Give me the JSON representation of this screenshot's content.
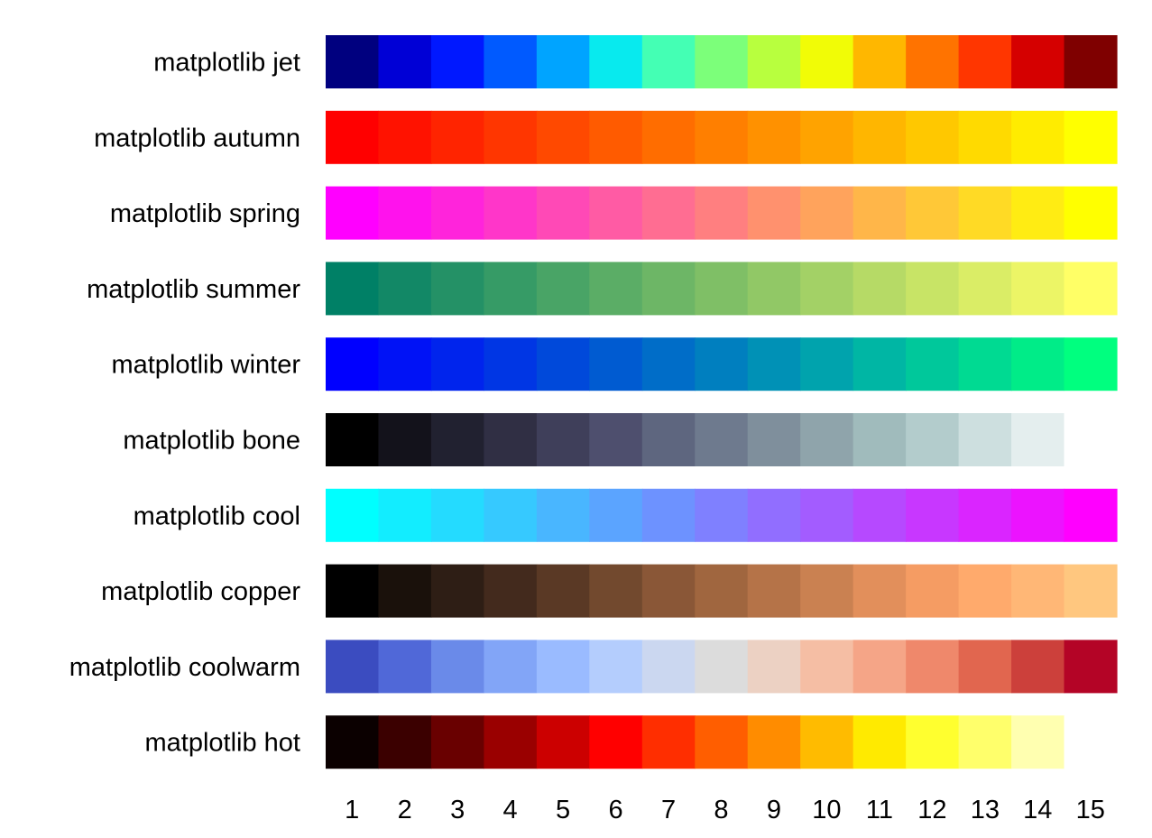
{
  "chart_data": {
    "type": "heatmap",
    "title": "",
    "xlabel": "",
    "ylabel": "",
    "grid": false,
    "x": [
      "1",
      "2",
      "3",
      "4",
      "5",
      "6",
      "7",
      "8",
      "9",
      "10",
      "11",
      "12",
      "13",
      "14",
      "15"
    ],
    "rows": [
      {
        "name": "matplotlib jet",
        "colors": [
          "#00007f",
          "#0000d6",
          "#0018ff",
          "#005aff",
          "#00a4ff",
          "#08eaee",
          "#44ffb4",
          "#7cff7a",
          "#b8ff3e",
          "#f1fc06",
          "#ffb700",
          "#ff7300",
          "#ff3600",
          "#d50000",
          "#7f0000"
        ]
      },
      {
        "name": "matplotlib autumn",
        "colors": [
          "#ff0000",
          "#ff1200",
          "#ff2400",
          "#ff3600",
          "#ff4900",
          "#ff5b00",
          "#ff6d00",
          "#ff7f00",
          "#ff9100",
          "#ffa300",
          "#ffb600",
          "#ffc800",
          "#ffda00",
          "#ffec00",
          "#ffff00"
        ]
      },
      {
        "name": "matplotlib spring",
        "colors": [
          "#ff00ff",
          "#ff12ed",
          "#ff24db",
          "#ff36c9",
          "#ff49b6",
          "#ff5ba4",
          "#ff6d92",
          "#ff7f80",
          "#ff916e",
          "#ffa35c",
          "#ffb649",
          "#ffc837",
          "#ffda25",
          "#ffec13",
          "#ffff00"
        ]
      },
      {
        "name": "matplotlib summer",
        "colors": [
          "#008066",
          "#128866",
          "#249166",
          "#369b66",
          "#49a466",
          "#5bad66",
          "#6db666",
          "#7fbf66",
          "#91c866",
          "#a3d166",
          "#b6da66",
          "#c8e466",
          "#daed66",
          "#ecf566",
          "#ffff66"
        ]
      },
      {
        "name": "matplotlib winter",
        "colors": [
          "#0000ff",
          "#0012f6",
          "#0024ed",
          "#0036e4",
          "#0049da",
          "#005bd1",
          "#006dc8",
          "#007fbf",
          "#0091b6",
          "#00a3ad",
          "#00b6a4",
          "#00c89b",
          "#00da92",
          "#00ec88",
          "#00ff7f"
        ]
      },
      {
        "name": "matplotlib bone",
        "colors": [
          "#000000",
          "#13121b",
          "#212130",
          "#302f44",
          "#3f3f5a",
          "#4e4f6e",
          "#5e667f",
          "#6e7a8e",
          "#7f8f9c",
          "#8fa4ab",
          "#a0bbbc",
          "#b3cccc",
          "#cddfdf",
          "#e4eeee",
          "#ffffff"
        ]
      },
      {
        "name": "matplotlib cool",
        "colors": [
          "#00ffff",
          "#12edff",
          "#24dbff",
          "#36c9ff",
          "#49b6ff",
          "#5ba4ff",
          "#6d92ff",
          "#7f80ff",
          "#916eff",
          "#a35cff",
          "#b649ff",
          "#c837ff",
          "#da25ff",
          "#ec13ff",
          "#ff00ff"
        ]
      },
      {
        "name": "matplotlib copper",
        "colors": [
          "#000000",
          "#1a110b",
          "#2e1e15",
          "#432a1d",
          "#5a3925",
          "#72492e",
          "#8a5737",
          "#a0663f",
          "#b57348",
          "#ca8151",
          "#e28f5b",
          "#f59c63",
          "#ffaa6c",
          "#ffb776",
          "#ffc77f"
        ]
      },
      {
        "name": "matplotlib coolwarm",
        "colors": [
          "#3b4cc0",
          "#5068d8",
          "#6a8ae9",
          "#82a5f7",
          "#9abbff",
          "#b4cdfd",
          "#cbd7f0",
          "#dcdcdc",
          "#ecd1c3",
          "#f5bea4",
          "#f5a587",
          "#ef886b",
          "#e1664f",
          "#cc403b",
          "#b40426"
        ]
      },
      {
        "name": "matplotlib hot",
        "colors": [
          "#0b0000",
          "#3b0000",
          "#690000",
          "#9a0000",
          "#cc0000",
          "#ff0000",
          "#ff2e00",
          "#ff5e00",
          "#ff8c00",
          "#ffbb00",
          "#ffea00",
          "#ffff2f",
          "#ffff6b",
          "#ffffb0",
          "#ffffff"
        ]
      }
    ]
  }
}
